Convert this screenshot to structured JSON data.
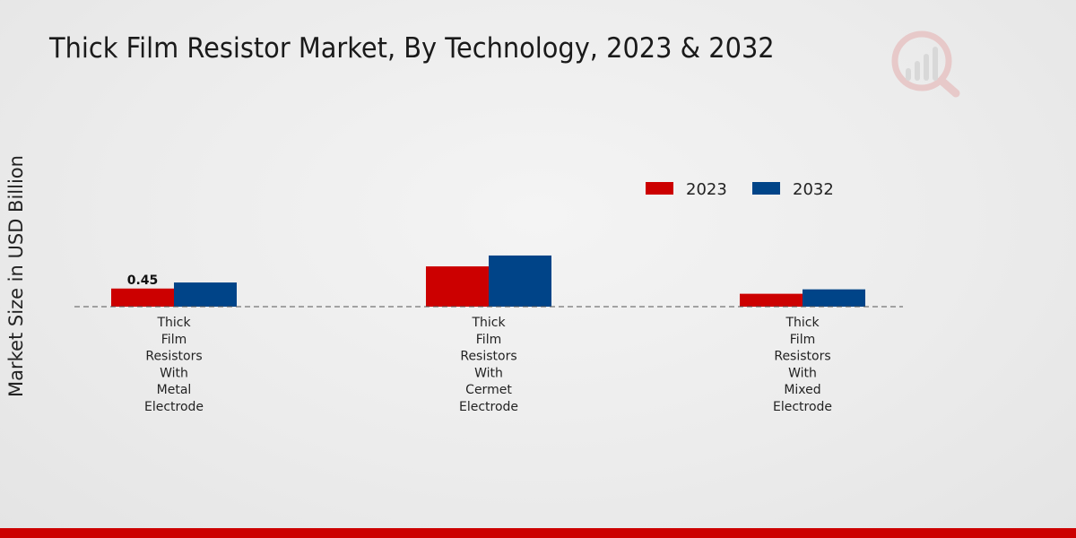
{
  "title": "Thick Film Resistor Market, By Technology, 2023 & 2032",
  "colors": {
    "s2023": "#cc0000",
    "s2032": "#004488",
    "accent": "#cc0000"
  },
  "chart_data": {
    "type": "bar",
    "title": "Thick Film Resistor Market, By Technology, 2023 & 2032",
    "xlabel": "",
    "ylabel": "Market Size in USD Billion",
    "categories": [
      [
        "Thick",
        "Film",
        "Resistors",
        "With",
        "Metal",
        "Electrode"
      ],
      [
        "Thick",
        "Film",
        "Resistors",
        "With",
        "Cermet",
        "Electrode"
      ],
      [
        "Thick",
        "Film",
        "Resistors",
        "With",
        "Mixed",
        "Electrode"
      ]
    ],
    "series": [
      {
        "name": "2023",
        "values": [
          0.45,
          1.0,
          0.32
        ]
      },
      {
        "name": "2032",
        "values": [
          0.6,
          1.27,
          0.43
        ]
      }
    ],
    "data_labels": [
      {
        "series": 0,
        "index": 0,
        "text": "0.45"
      }
    ],
    "ylim": [
      0,
      6.5
    ],
    "legend_position": "top-right",
    "grid": false
  }
}
